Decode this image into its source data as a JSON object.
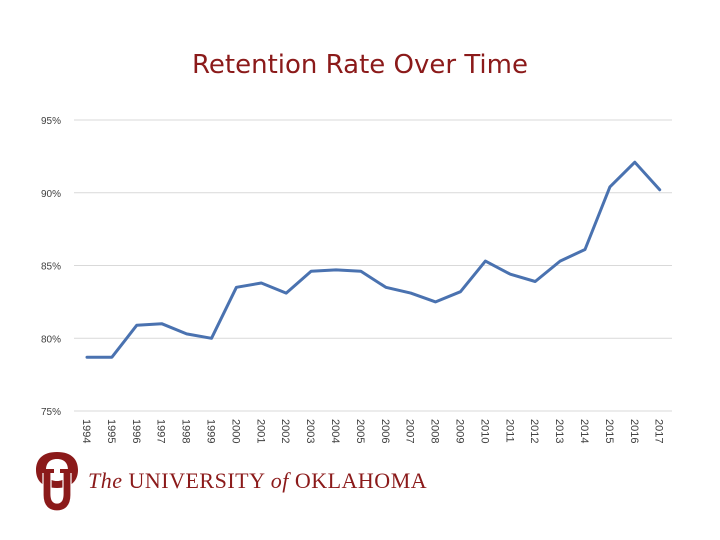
{
  "header": {
    "title": "Retention Rate Over Time"
  },
  "logo": {
    "the": "The",
    "university": "UNIVERSITY",
    "of": "of",
    "state": "OKLAHOMA"
  },
  "colors": {
    "title": "#8b1a1a",
    "line": "#4a72b0",
    "grid": "#d9d9d9",
    "brand": "#8b1a1a"
  },
  "chart_data": {
    "type": "line",
    "title": "Retention Rate Over Time",
    "xlabel": "",
    "ylabel": "",
    "x": [
      "1994",
      "1995",
      "1996",
      "1997",
      "1998",
      "1999",
      "2000",
      "2001",
      "2002",
      "2003",
      "2004",
      "2005",
      "2006",
      "2007",
      "2008",
      "2009",
      "2010",
      "2011",
      "2012",
      "2013",
      "2014",
      "2015",
      "2016",
      "2017"
    ],
    "series": [
      {
        "values": [
          78.7,
          78.7,
          80.9,
          81.0,
          80.3,
          80.0,
          83.5,
          83.8,
          83.1,
          84.6,
          84.7,
          84.6,
          83.5,
          83.1,
          82.5,
          83.2,
          85.3,
          84.4,
          83.9,
          85.3,
          86.1,
          90.4,
          92.1,
          90.2
        ]
      }
    ],
    "ylim": [
      75,
      95
    ],
    "yticks": [
      "75%",
      "80%",
      "85%",
      "90%",
      "95%"
    ],
    "ytick_values": [
      75,
      80,
      85,
      90,
      95
    ],
    "grid": true,
    "legend": "none"
  }
}
